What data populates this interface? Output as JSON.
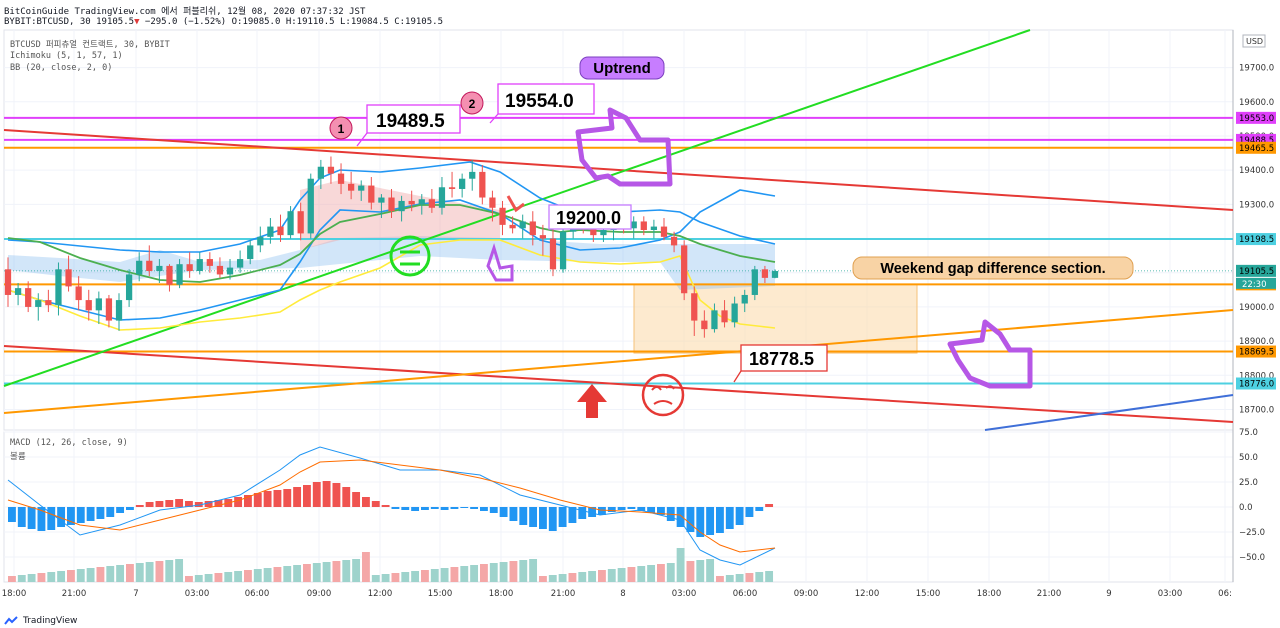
{
  "header": {
    "title_line": "BitCoinGuide TradingView.com 에서 퍼블리쉬, 12월 08, 2020 07:37:32 JST",
    "symbol_line": "BYBIT:BTCUSD, 30",
    "last_price": "19105.5",
    "change": "−295.0 (−1.52%)",
    "open": "O:19085.0",
    "high": "H:19110.5",
    "low": "L:19084.5",
    "close": "C:19105.5"
  },
  "legend": {
    "symbol": "BTCUSD 퍼피츄얼 컨트랙트, 30, BYBIT",
    "ichimoku": "Ichimoku (5, 1, 57, 1)",
    "bb": "BB (20, close, 2, 0)",
    "macd": "MACD (12, 26, close, 9)",
    "volume": "볼륨"
  },
  "currency_badge": "USD",
  "countdown": "22:30",
  "footer": {
    "brand": "TradingView"
  },
  "colors": {
    "up": "#26a69a",
    "down": "#ef5350",
    "bb": "#2196f3",
    "kijun": "#4caf50",
    "tenkan": "#ffeb3b",
    "red_line": "#e53935",
    "green_line": "#22dd22",
    "orange_line": "#ff9800",
    "magenta_line": "#e040fb",
    "cyan_line": "#4dd0e1",
    "annotation_purple": "#c77dff",
    "blue_line": "#3f6fd8"
  },
  "chart_data": {
    "type": "candlestick",
    "x_ticks": [
      "18:00",
      "21:00",
      "7",
      "03:00",
      "06:00",
      "09:00",
      "12:00",
      "15:00",
      "18:00",
      "21:00",
      "8",
      "03:00",
      "06:00",
      "09:00",
      "12:00",
      "15:00",
      "18:00",
      "21:00",
      "9",
      "03:00",
      "06:"
    ],
    "price_axis": {
      "range": [
        18640,
        19810
      ],
      "ticks": [
        "19700.0",
        "19600.0",
        "19500.0",
        "19400.0",
        "19300.0",
        "19200.0",
        "19100.0",
        "19000.0",
        "18900.0",
        "18800.0",
        "18700.0"
      ]
    },
    "price_tags": [
      {
        "value": "19553.0",
        "color": "#e040fb"
      },
      {
        "value": "19488.5",
        "color": "#e040fb"
      },
      {
        "value": "19465.5",
        "color": "#ff9800"
      },
      {
        "value": "19198.5",
        "color": "#4dd0e1"
      },
      {
        "value": "19105.5",
        "color": "#26a69a"
      },
      {
        "value": "19066.0",
        "color": "#ff9800"
      },
      {
        "value": "18869.5",
        "color": "#ff9800"
      },
      {
        "value": "18776.0",
        "color": "#4dd0e1"
      }
    ],
    "horizontal_levels": [
      {
        "price": 19553.0,
        "color": "#e040fb"
      },
      {
        "price": 19488.5,
        "color": "#e040fb"
      },
      {
        "price": 19465.5,
        "color": "#ff9800"
      },
      {
        "price": 19198.5,
        "color": "#4dd0e1"
      },
      {
        "price": 19066.0,
        "color": "#ff9800"
      },
      {
        "price": 18869.5,
        "color": "#ff9800"
      },
      {
        "price": 18776.0,
        "color": "#4dd0e1"
      }
    ],
    "annotations": {
      "uptrend": "Uptrend",
      "weekend_gap": "Weekend gap difference section.",
      "callout_19489": "19489.5",
      "callout_19554": "19554.0",
      "callout_19200": "19200.0",
      "callout_18778": "18778.5",
      "marker_1": "1",
      "marker_2": "2"
    },
    "candles": [
      [
        19110,
        19145,
        19000,
        19035
      ],
      [
        19035,
        19070,
        19005,
        19055
      ],
      [
        19055,
        19075,
        18985,
        19000
      ],
      [
        19000,
        19040,
        18960,
        19020
      ],
      [
        19020,
        19050,
        18985,
        19005
      ],
      [
        19005,
        19130,
        18975,
        19110
      ],
      [
        19110,
        19150,
        19045,
        19060
      ],
      [
        19060,
        19090,
        18990,
        19020
      ],
      [
        19020,
        19050,
        18960,
        18990
      ],
      [
        18990,
        19045,
        18950,
        19025
      ],
      [
        19025,
        19035,
        18940,
        18960
      ],
      [
        18960,
        19040,
        18930,
        19020
      ],
      [
        19020,
        19110,
        19000,
        19095
      ],
      [
        19095,
        19160,
        19075,
        19135
      ],
      [
        19135,
        19180,
        19090,
        19105
      ],
      [
        19105,
        19140,
        19070,
        19120
      ],
      [
        19120,
        19125,
        19045,
        19065
      ],
      [
        19065,
        19140,
        19055,
        19125
      ],
      [
        19125,
        19160,
        19085,
        19105
      ],
      [
        19105,
        19160,
        19095,
        19140
      ],
      [
        19140,
        19160,
        19100,
        19120
      ],
      [
        19120,
        19145,
        19085,
        19095
      ],
      [
        19095,
        19140,
        19080,
        19115
      ],
      [
        19115,
        19165,
        19100,
        19140
      ],
      [
        19140,
        19195,
        19125,
        19180
      ],
      [
        19180,
        19235,
        19160,
        19205
      ],
      [
        19205,
        19260,
        19185,
        19235
      ],
      [
        19235,
        19270,
        19190,
        19210
      ],
      [
        19210,
        19295,
        19200,
        19280
      ],
      [
        19280,
        19305,
        19195,
        19215
      ],
      [
        19215,
        19390,
        19200,
        19375
      ],
      [
        19375,
        19430,
        19345,
        19410
      ],
      [
        19410,
        19440,
        19360,
        19390
      ],
      [
        19390,
        19420,
        19330,
        19360
      ],
      [
        19360,
        19395,
        19315,
        19340
      ],
      [
        19340,
        19370,
        19310,
        19355
      ],
      [
        19355,
        19380,
        19285,
        19305
      ],
      [
        19305,
        19330,
        19260,
        19320
      ],
      [
        19320,
        19345,
        19260,
        19280
      ],
      [
        19280,
        19325,
        19250,
        19310
      ],
      [
        19310,
        19340,
        19280,
        19300
      ],
      [
        19300,
        19330,
        19270,
        19315
      ],
      [
        19315,
        19345,
        19275,
        19290
      ],
      [
        19290,
        19380,
        19270,
        19350
      ],
      [
        19350,
        19395,
        19320,
        19345
      ],
      [
        19345,
        19390,
        19320,
        19375
      ],
      [
        19375,
        19430,
        19340,
        19395
      ],
      [
        19395,
        19415,
        19300,
        19320
      ],
      [
        19320,
        19340,
        19250,
        19290
      ],
      [
        19290,
        19310,
        19210,
        19240
      ],
      [
        19240,
        19265,
        19215,
        19230
      ],
      [
        19230,
        19270,
        19200,
        19250
      ],
      [
        19250,
        19280,
        19180,
        19210
      ],
      [
        19210,
        19240,
        19150,
        19200
      ],
      [
        19200,
        19240,
        19090,
        19110
      ],
      [
        19110,
        19240,
        19100,
        19220
      ],
      [
        19220,
        19265,
        19200,
        19245
      ],
      [
        19245,
        19270,
        19215,
        19230
      ],
      [
        19230,
        19260,
        19190,
        19210
      ],
      [
        19210,
        19250,
        19190,
        19225
      ],
      [
        19225,
        19270,
        19195,
        19240
      ],
      [
        19240,
        19265,
        19215,
        19230
      ],
      [
        19230,
        19265,
        19200,
        19250
      ],
      [
        19250,
        19265,
        19210,
        19225
      ],
      [
        19225,
        19255,
        19200,
        19235
      ],
      [
        19235,
        19260,
        19195,
        19205
      ],
      [
        19205,
        19220,
        19160,
        19180
      ],
      [
        19180,
        19195,
        19020,
        19040
      ],
      [
        19040,
        19060,
        18915,
        18960
      ],
      [
        18960,
        18990,
        18910,
        18935
      ],
      [
        18935,
        19010,
        18925,
        18990
      ],
      [
        18990,
        19020,
        18940,
        18955
      ],
      [
        18955,
        19030,
        18940,
        19010
      ],
      [
        19010,
        19050,
        18985,
        19035
      ],
      [
        19035,
        19120,
        19020,
        19110
      ],
      [
        19110,
        19120,
        19070,
        19085
      ],
      [
        19085,
        19110,
        19084,
        19105
      ]
    ],
    "macd_axis": {
      "range": [
        -75,
        75
      ],
      "ticks": [
        "75.0",
        "50.0",
        "25.0",
        "0.0",
        "−25.0",
        "−50.0"
      ]
    }
  }
}
